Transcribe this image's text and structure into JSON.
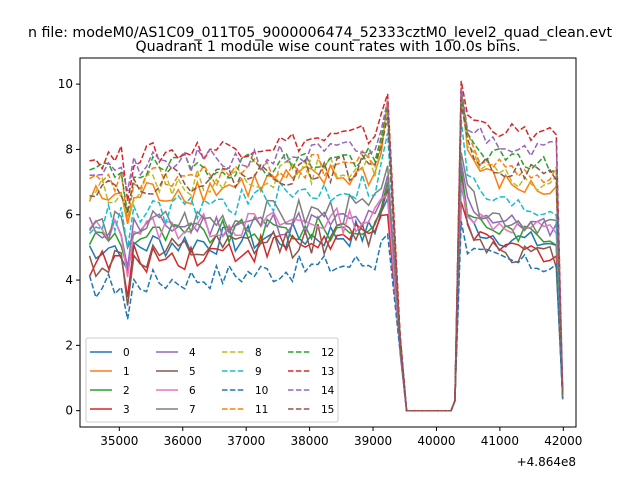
{
  "chart_data": {
    "type": "line",
    "suptitle": "n file: modeM0/AS1C09_011T05_9000006474_52333cztM0_level2_quad_clean.evt",
    "title": "Quadrant 1 module wise count rates with 100.0s bins.",
    "xlabel": "",
    "ylabel": "",
    "offset_text": "+4.864e8",
    "xlim": [
      34380,
      42200
    ],
    "ylim": [
      -0.5,
      10.8
    ],
    "xticks": [
      35000,
      36000,
      37000,
      38000,
      39000,
      40000,
      41000,
      42000
    ],
    "yticks": [
      0,
      2,
      4,
      6,
      8,
      10
    ],
    "grid": false,
    "legend": {
      "placement": "lower-left",
      "columns": 4
    },
    "x_segments": {
      "a_start": 34530,
      "bin": 100,
      "a_count": 48,
      "gap_points": [
        [
          39430,
          null
        ],
        [
          39530,
          0
        ],
        [
          39730,
          0
        ],
        [
          40030,
          0
        ],
        [
          40230,
          0
        ],
        [
          40290,
          0.3
        ]
      ],
      "b_start": 40390,
      "b_count": 16
    },
    "series": [
      {
        "name": "0",
        "color": "#1f77b4",
        "dash": "solid",
        "base": 5.0,
        "slope": 0.12,
        "amp": 0.45,
        "peak": 6.5,
        "b_base": 5.4,
        "end": 0.35
      },
      {
        "name": "1",
        "color": "#ff7f0e",
        "dash": "solid",
        "base": 6.5,
        "slope": 0.2,
        "amp": 0.45,
        "peak": 9.5,
        "b_base": 7.0,
        "end": 0.5
      },
      {
        "name": "2",
        "color": "#2ca02c",
        "dash": "solid",
        "base": 5.3,
        "slope": 0.08,
        "amp": 0.4,
        "peak": 7.0,
        "b_base": 5.6,
        "end": 0.4
      },
      {
        "name": "3",
        "color": "#d62728",
        "dash": "solid",
        "base": 4.5,
        "slope": 0.22,
        "amp": 0.45,
        "peak": 6.0,
        "b_base": 5.1,
        "end": 0.4
      },
      {
        "name": "4",
        "color": "#9467bd",
        "dash": "solid",
        "base": 5.6,
        "slope": 0.06,
        "amp": 0.4,
        "peak": 7.2,
        "b_base": 5.9,
        "end": 0.45
      },
      {
        "name": "5",
        "color": "#8c564b",
        "dash": "solid",
        "base": 4.5,
        "slope": 0.25,
        "amp": 0.5,
        "peak": 6.8,
        "b_base": 5.0,
        "end": 0.4
      },
      {
        "name": "6",
        "color": "#e377c2",
        "dash": "solid",
        "base": 5.5,
        "slope": 0.1,
        "amp": 0.4,
        "peak": 6.6,
        "b_base": 5.8,
        "end": 0.45
      },
      {
        "name": "7",
        "color": "#7f7f7f",
        "dash": "solid",
        "base": 5.6,
        "slope": 0.15,
        "amp": 0.5,
        "peak": 7.5,
        "b_base": 6.0,
        "end": 0.45
      },
      {
        "name": "8",
        "color": "#bcbd22",
        "dash": "dashed",
        "base": 6.7,
        "slope": 0.22,
        "amp": 0.4,
        "peak": 9.2,
        "b_base": 7.2,
        "end": 0.5
      },
      {
        "name": "9",
        "color": "#17becf",
        "dash": "dashed",
        "base": 5.8,
        "slope": 0.3,
        "amp": 0.45,
        "peak": 8.5,
        "b_base": 6.4,
        "end": 0.45
      },
      {
        "name": "10",
        "color": "#1f77b4",
        "dash": "dashed",
        "base": 3.8,
        "slope": 0.2,
        "amp": 0.4,
        "peak": 5.4,
        "b_base": 4.7,
        "end": 0.35
      },
      {
        "name": "11",
        "color": "#ff7f0e",
        "dash": "dashed",
        "base": 6.9,
        "slope": 0.2,
        "amp": 0.4,
        "peak": 9.4,
        "b_base": 7.5,
        "end": 0.5
      },
      {
        "name": "12",
        "color": "#2ca02c",
        "dash": "dashed",
        "base": 7.3,
        "slope": 0.12,
        "amp": 0.4,
        "peak": 9.3,
        "b_base": 7.8,
        "end": 0.5
      },
      {
        "name": "13",
        "color": "#d62728",
        "dash": "dashed",
        "base": 7.7,
        "slope": 0.2,
        "amp": 0.35,
        "peak": 9.7,
        "b_base": 8.7,
        "end": 0.6
      },
      {
        "name": "14",
        "color": "#9467bd",
        "dash": "dashed",
        "base": 7.4,
        "slope": 0.15,
        "amp": 0.4,
        "peak": 9.5,
        "b_base": 8.3,
        "end": 0.55
      },
      {
        "name": "15",
        "color": "#8c564b",
        "dash": "dashed",
        "base": 6.9,
        "slope": 0.15,
        "amp": 0.4,
        "peak": 9.0,
        "b_base": 7.5,
        "end": 0.5
      }
    ]
  }
}
